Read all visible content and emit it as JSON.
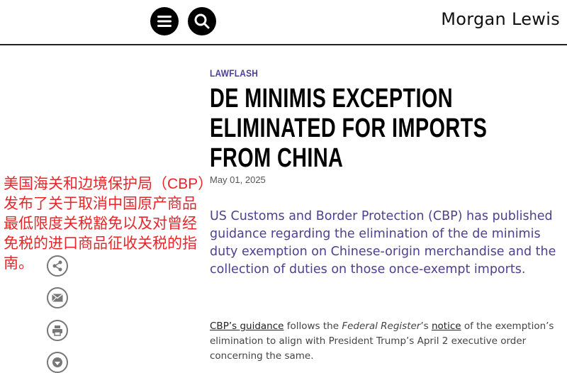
{
  "header": {
    "brand": "Morgan Lewis",
    "menu_icon": "hamburger-icon",
    "search_icon": "search-icon"
  },
  "article": {
    "kicker": "LAWFLASH",
    "title_lines": [
      "DE MINIMIS EXCEPTION",
      "ELIMINATED FOR IMPORTS",
      "FROM CHINA"
    ],
    "date": "May 01, 2025",
    "summary": "US Customs and Border Protection (CBP) has published guidance regarding the elimination of the de minimis duty exemption on Chinese-origin merchandise and the collection of duties on those once-exempt imports.",
    "body": {
      "link1": "CBP’s guidance",
      "t1": " follows the ",
      "italic": "Federal Register",
      "t2": "’s ",
      "link2": "notice",
      "t3": " of the exemption’s elimination to align with President Trump’s April 2 executive order concerning the same."
    }
  },
  "overlay_text": "美国海关和边境保护局（CBP）\n发布了关于取消中国原产商品\n最低限度关税豁免以及对曾经\n免税的进口商品征收关税的指南。",
  "share_icons": [
    "share-icon",
    "email-icon",
    "print-icon",
    "download-icon"
  ],
  "colors": {
    "accent": "#4e3f99",
    "overlay": "#e8262a"
  }
}
